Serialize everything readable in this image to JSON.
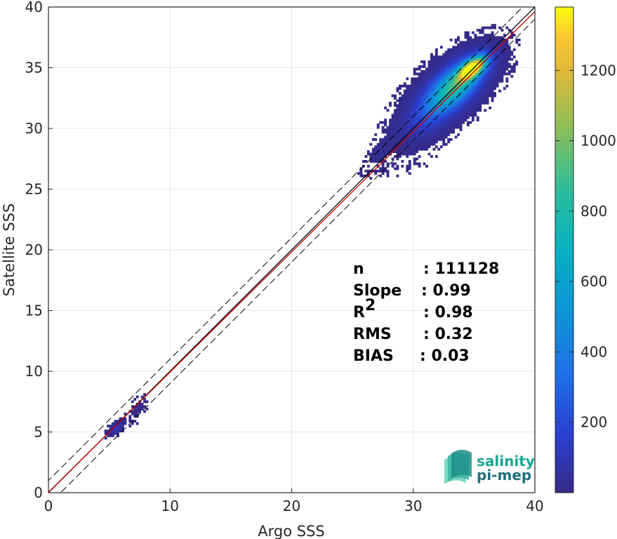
{
  "chart_data": {
    "type": "heatmap",
    "xlabel": "Argo SSS",
    "ylabel": "Satellite SSS",
    "xlim": [
      0,
      40
    ],
    "ylim": [
      0,
      40
    ],
    "xticks": [
      "0",
      "10",
      "20",
      "30",
      "40"
    ],
    "yticks": [
      "0",
      "5",
      "10",
      "15",
      "20",
      "25",
      "30",
      "35",
      "40"
    ],
    "grid": true,
    "colorbar": {
      "min": 0,
      "max": 1380,
      "ticks": [
        "200",
        "400",
        "600",
        "800",
        "1000",
        "1200"
      ],
      "tick_values": [
        200,
        400,
        600,
        800,
        1000,
        1200
      ],
      "colormap": "parula"
    },
    "reference_lines": [
      {
        "name": "1:1",
        "slope": 1,
        "intercept": 0,
        "color": "#000000",
        "style": "solid"
      },
      {
        "name": "fit",
        "slope": 0.99,
        "intercept": 0.03,
        "color": "#cc0000",
        "style": "solid"
      },
      {
        "name": "+1",
        "slope": 1,
        "intercept": 1,
        "color": "#000000",
        "style": "dashed"
      },
      {
        "name": "-1",
        "slope": 1,
        "intercept": -1,
        "color": "#000000",
        "style": "dashed"
      }
    ],
    "stats": [
      {
        "label": "n",
        "value": ": 111128"
      },
      {
        "label": "Slope",
        "value": ": 0.99"
      },
      {
        "label": "R",
        "sup": "2",
        "value": ": 0.98"
      },
      {
        "label": "RMS",
        "value": ": 0.32"
      },
      {
        "label": "BIAS",
        "value": ": 0.03"
      }
    ],
    "density_clusters": [
      {
        "cx": 34.8,
        "cy": 34.9,
        "sx": 0.7,
        "sy": 0.6,
        "peak": 1380
      },
      {
        "cx": 33.6,
        "cy": 33.7,
        "sx": 1.3,
        "sy": 1.2,
        "peak": 600
      },
      {
        "cx": 32.5,
        "cy": 32.6,
        "sx": 1.4,
        "sy": 1.3,
        "peak": 350
      },
      {
        "cx": 31.0,
        "cy": 30.8,
        "sx": 1.3,
        "sy": 1.2,
        "peak": 90
      },
      {
        "cx": 27.2,
        "cy": 28.0,
        "sx": 0.5,
        "sy": 0.5,
        "peak": 25
      },
      {
        "cx": 28.5,
        "cy": 26.8,
        "sx": 1.4,
        "sy": 0.5,
        "peak": 5
      },
      {
        "cx": 5.5,
        "cy": 5.3,
        "sx": 0.3,
        "sy": 0.3,
        "peak": 120
      },
      {
        "cx": 7.2,
        "cy": 6.8,
        "sx": 0.4,
        "sy": 0.6,
        "peak": 10
      }
    ]
  },
  "logo": {
    "line1": "salinity",
    "line2": "pi-mep"
  }
}
